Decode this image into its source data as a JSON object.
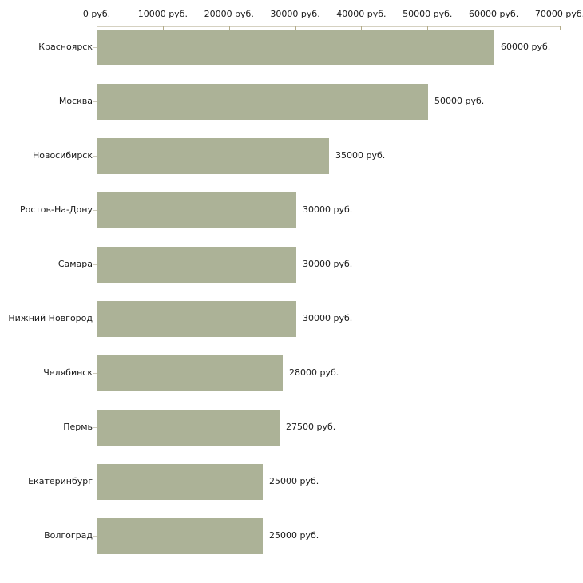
{
  "chart_data": {
    "type": "bar",
    "orientation": "horizontal",
    "title": "",
    "xlabel": "",
    "ylabel": "",
    "unit": "руб.",
    "xlim": [
      0,
      70000
    ],
    "grid": false,
    "legend": false,
    "axis_position": "top",
    "bar_color": "#acb297",
    "categories": [
      "Красноярск",
      "Москва",
      "Новосибирск",
      "Ростов-На-Дону",
      "Самара",
      "Нижний Новгород",
      "Челябинск",
      "Пермь",
      "Екатеринбург",
      "Волгоград"
    ],
    "values": [
      60000,
      50000,
      35000,
      30000,
      30000,
      30000,
      28000,
      27500,
      25000,
      25000
    ],
    "value_labels": [
      "60000 руб.",
      "50000 руб.",
      "35000 руб.",
      "30000 руб.",
      "30000 руб.",
      "30000 руб.",
      "28000 руб.",
      "27500 руб.",
      "25000 руб.",
      "25000 руб."
    ],
    "x_ticks": [
      {
        "value": 0,
        "label": "0 руб."
      },
      {
        "value": 10000,
        "label": "10000 руб."
      },
      {
        "value": 20000,
        "label": "20000 руб."
      },
      {
        "value": 30000,
        "label": "30000 руб."
      },
      {
        "value": 40000,
        "label": "40000 руб."
      },
      {
        "value": 50000,
        "label": "50000 руб."
      },
      {
        "value": 60000,
        "label": "60000 руб."
      },
      {
        "value": 70000,
        "label": "70000 руб."
      }
    ]
  }
}
